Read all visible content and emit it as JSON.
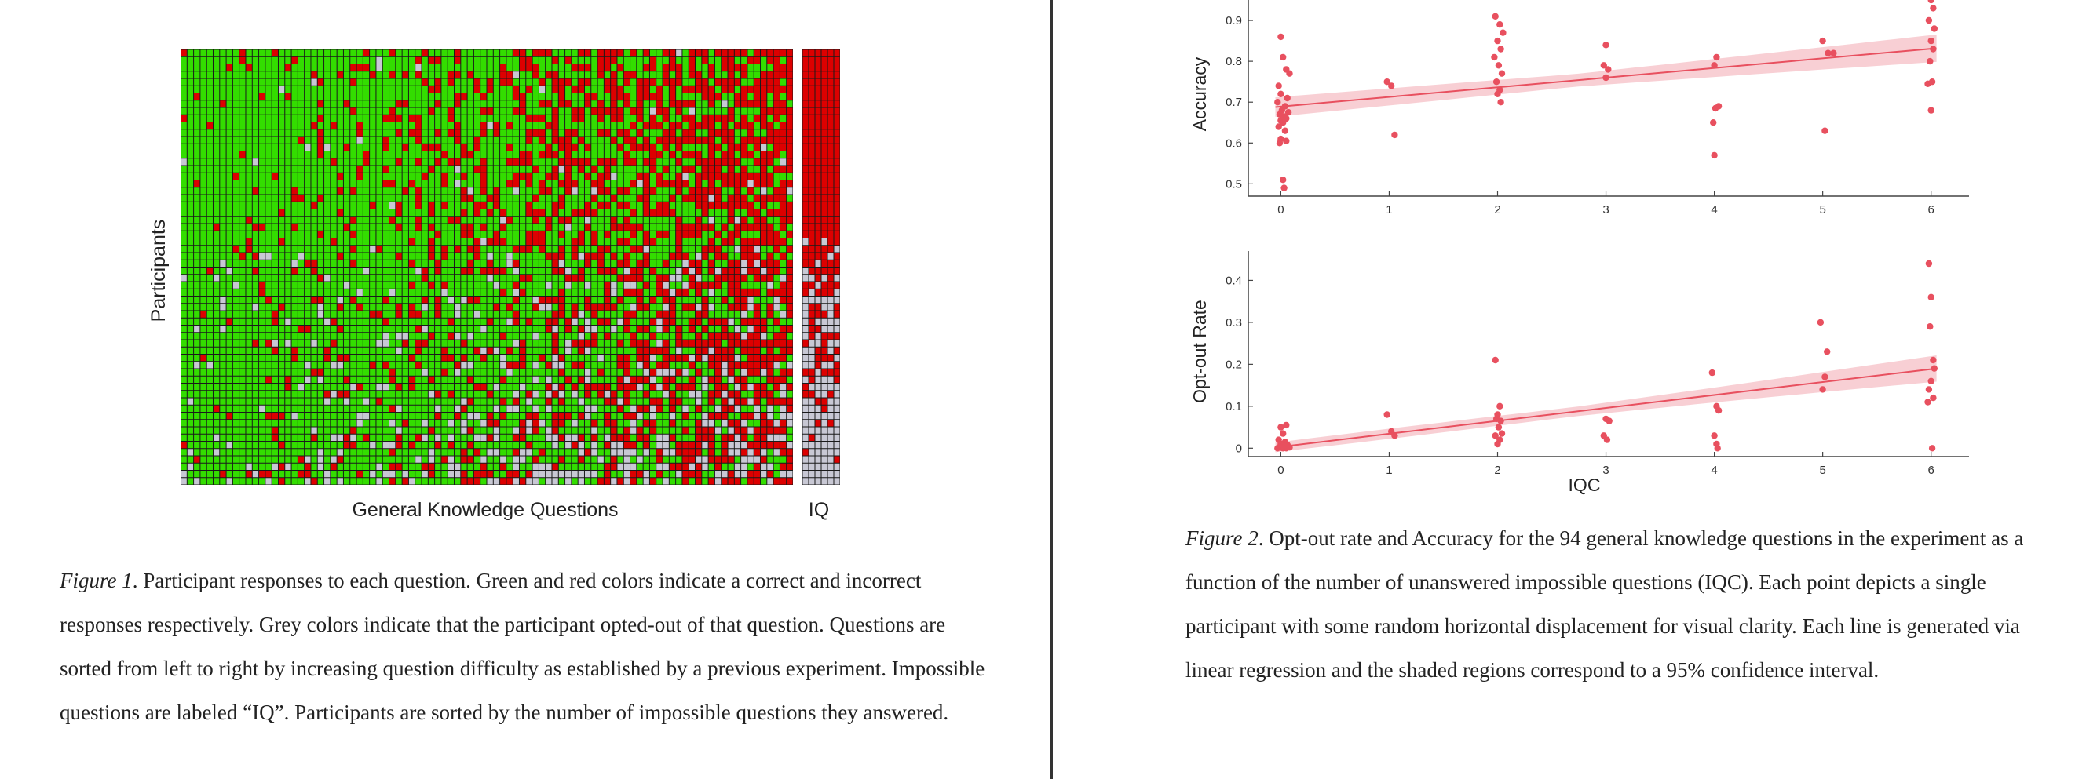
{
  "figure1": {
    "caption_label": "Figure 1",
    "caption_text": ". Participant responses to each question. Green and red colors indicate a correct and incorrect responses respectively. Grey colors indicate that the participant opted-out of that question. Questions are sorted from left to right by increasing question difficulty as established by a previous experiment. Impossible questions are labeled “IQ”. Participants are sorted by the number of impossible questions they answered.",
    "ylabel": "Participants",
    "xlabel": "General Knowledge Questions",
    "iq_label": "IQ",
    "colors": {
      "correct": "#33dd00",
      "incorrect": "#dd0000",
      "optout": "#c8c8d4",
      "grid": "#1a1a1a"
    }
  },
  "figure2": {
    "caption_label": "Figure 2",
    "caption_text": ". Opt-out rate and Accuracy for the 94 general knowledge questions in the experiment as a function of the number of unanswered impossible questions (IQC). Each point depicts a single participant with some random horizontal displacement for visual clarity. Each line is generated via linear regression and the shaded regions correspond to a 95% confidence interval.",
    "point_color": "#e8505f",
    "band_color": "#f7c7cd"
  },
  "chart_data": [
    {
      "type": "heatmap",
      "xlabel": "General Knowledge Questions",
      "ylabel": "Participants",
      "extra_block_label": "IQ",
      "legend_meaning": {
        "green": "correct",
        "red": "incorrect",
        "grey": "opted-out"
      },
      "questions": 94,
      "impossible_questions": 6,
      "participants": 60
    },
    {
      "type": "scatter",
      "xlabel": "",
      "ylabel": "Accuracy",
      "xlim": [
        -0.3,
        6.35
      ],
      "ylim": [
        0.47,
        0.95
      ],
      "xticks": [
        0,
        1,
        2,
        3,
        4,
        5,
        6
      ],
      "yticks": [
        0.5,
        0.6,
        0.7,
        0.8,
        0.9
      ],
      "points": [
        [
          0.0,
          0.86
        ],
        [
          0.02,
          0.81
        ],
        [
          0.05,
          0.78
        ],
        [
          0.08,
          0.77
        ],
        [
          -0.02,
          0.74
        ],
        [
          0.0,
          0.72
        ],
        [
          0.06,
          0.71
        ],
        [
          -0.03,
          0.7
        ],
        [
          0.04,
          0.69
        ],
        [
          0.01,
          0.68
        ],
        [
          0.07,
          0.675
        ],
        [
          -0.01,
          0.67
        ],
        [
          0.03,
          0.665
        ],
        [
          0.05,
          0.66
        ],
        [
          0.0,
          0.655
        ],
        [
          0.02,
          0.65
        ],
        [
          -0.02,
          0.64
        ],
        [
          0.04,
          0.63
        ],
        [
          0.0,
          0.61
        ],
        [
          0.05,
          0.605
        ],
        [
          -0.01,
          0.6
        ],
        [
          0.02,
          0.51
        ],
        [
          0.03,
          0.49
        ],
        [
          0.98,
          0.75
        ],
        [
          1.02,
          0.74
        ],
        [
          1.05,
          0.62
        ],
        [
          1.98,
          0.91
        ],
        [
          2.02,
          0.89
        ],
        [
          2.05,
          0.87
        ],
        [
          2.0,
          0.85
        ],
        [
          2.03,
          0.83
        ],
        [
          1.97,
          0.81
        ],
        [
          2.01,
          0.79
        ],
        [
          2.04,
          0.77
        ],
        [
          1.99,
          0.75
        ],
        [
          2.02,
          0.73
        ],
        [
          2.0,
          0.72
        ],
        [
          2.03,
          0.7
        ],
        [
          3.0,
          0.84
        ],
        [
          2.98,
          0.79
        ],
        [
          3.02,
          0.78
        ],
        [
          3.0,
          0.76
        ],
        [
          4.02,
          0.81
        ],
        [
          4.0,
          0.79
        ],
        [
          4.04,
          0.69
        ],
        [
          4.01,
          0.685
        ],
        [
          3.99,
          0.65
        ],
        [
          4.0,
          0.57
        ],
        [
          5.0,
          0.85
        ],
        [
          5.05,
          0.82
        ],
        [
          5.1,
          0.82
        ],
        [
          5.02,
          0.63
        ],
        [
          6.0,
          0.95
        ],
        [
          6.02,
          0.93
        ],
        [
          5.98,
          0.9
        ],
        [
          6.03,
          0.88
        ],
        [
          6.0,
          0.85
        ],
        [
          6.02,
          0.83
        ],
        [
          5.99,
          0.8
        ],
        [
          6.01,
          0.75
        ],
        [
          5.97,
          0.745
        ],
        [
          6.0,
          0.68
        ]
      ],
      "regression": {
        "x": [
          -0.05,
          6.05
        ],
        "y": [
          0.688,
          0.832
        ],
        "ci_halfwidth": [
          0.025,
          0.032
        ]
      }
    },
    {
      "type": "scatter",
      "xlabel": "IQC",
      "ylabel": "Opt-out Rate",
      "xlim": [
        -0.3,
        6.35
      ],
      "ylim": [
        -0.02,
        0.47
      ],
      "xticks": [
        0,
        1,
        2,
        3,
        4,
        5,
        6
      ],
      "yticks": [
        0,
        0.1,
        0.2,
        0.3,
        0.4
      ],
      "ytick_labels": [
        "0",
        "0.1",
        "0.2",
        "0.3",
        "0.4"
      ],
      "points": [
        [
          0.0,
          0.05
        ],
        [
          0.05,
          0.055
        ],
        [
          0.02,
          0.035
        ],
        [
          -0.02,
          0.02
        ],
        [
          0.04,
          0.015
        ],
        [
          0.0,
          0.01
        ],
        [
          0.06,
          0.008
        ],
        [
          0.03,
          0.005
        ],
        [
          -0.01,
          0.003
        ],
        [
          0.02,
          0.0
        ],
        [
          0.05,
          0.0
        ],
        [
          0.08,
          0.002
        ],
        [
          0.01,
          0.001
        ],
        [
          -0.03,
          0.0
        ],
        [
          0.98,
          0.08
        ],
        [
          1.02,
          0.04
        ],
        [
          1.05,
          0.03
        ],
        [
          1.98,
          0.21
        ],
        [
          2.02,
          0.1
        ],
        [
          2.0,
          0.08
        ],
        [
          1.99,
          0.07
        ],
        [
          2.03,
          0.065
        ],
        [
          2.01,
          0.05
        ],
        [
          2.04,
          0.035
        ],
        [
          1.98,
          0.03
        ],
        [
          2.02,
          0.02
        ],
        [
          2.0,
          0.01
        ],
        [
          3.0,
          0.07
        ],
        [
          3.03,
          0.065
        ],
        [
          2.98,
          0.03
        ],
        [
          3.01,
          0.02
        ],
        [
          3.98,
          0.18
        ],
        [
          4.02,
          0.1
        ],
        [
          4.04,
          0.09
        ],
        [
          4.0,
          0.03
        ],
        [
          4.02,
          0.01
        ],
        [
          4.03,
          0.0
        ],
        [
          4.98,
          0.3
        ],
        [
          5.04,
          0.23
        ],
        [
          5.02,
          0.17
        ],
        [
          5.0,
          0.14
        ],
        [
          5.98,
          0.44
        ],
        [
          6.0,
          0.36
        ],
        [
          5.99,
          0.29
        ],
        [
          6.02,
          0.21
        ],
        [
          6.03,
          0.19
        ],
        [
          6.0,
          0.16
        ],
        [
          5.98,
          0.14
        ],
        [
          6.02,
          0.12
        ],
        [
          5.97,
          0.11
        ],
        [
          6.01,
          0.0
        ]
      ],
      "regression": {
        "x": [
          -0.05,
          6.05
        ],
        "y": [
          0.002,
          0.19
        ],
        "ci_halfwidth": [
          0.012,
          0.03
        ]
      }
    }
  ]
}
